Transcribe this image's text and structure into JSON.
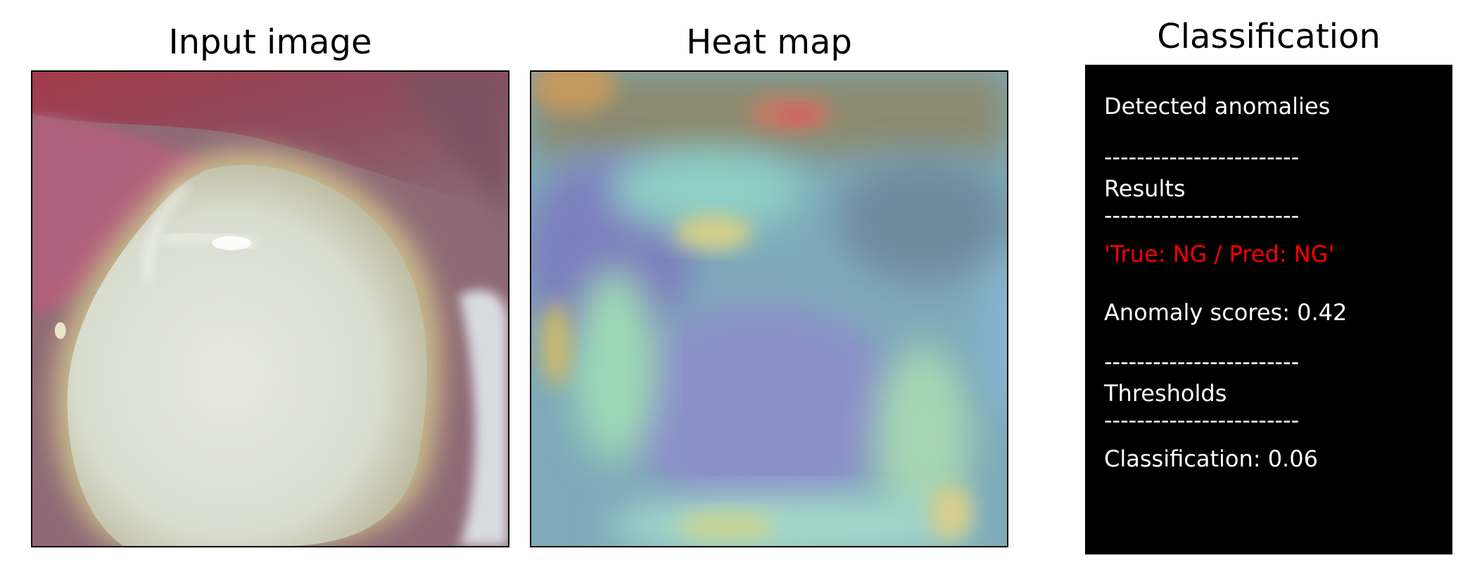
{
  "panels": {
    "input_title": "Input image",
    "heatmap_title": "Heat map",
    "classification_title": "Classification"
  },
  "classification": {
    "detected": "Detected anomalies",
    "sep1": "------------------------",
    "results_header": "Results",
    "sep2": "------------------------",
    "verdict": "'True: NG / Pred: NG'",
    "score": "Anomaly scores: 0.42",
    "sep3": "------------------------",
    "thresholds_header": "Thresholds",
    "sep4": "------------------------",
    "threshold": "Classification: 0.06"
  },
  "colors": {
    "verdict": "#ff0000",
    "panel_bg": "#000000",
    "panel_text": "#ffffff"
  }
}
